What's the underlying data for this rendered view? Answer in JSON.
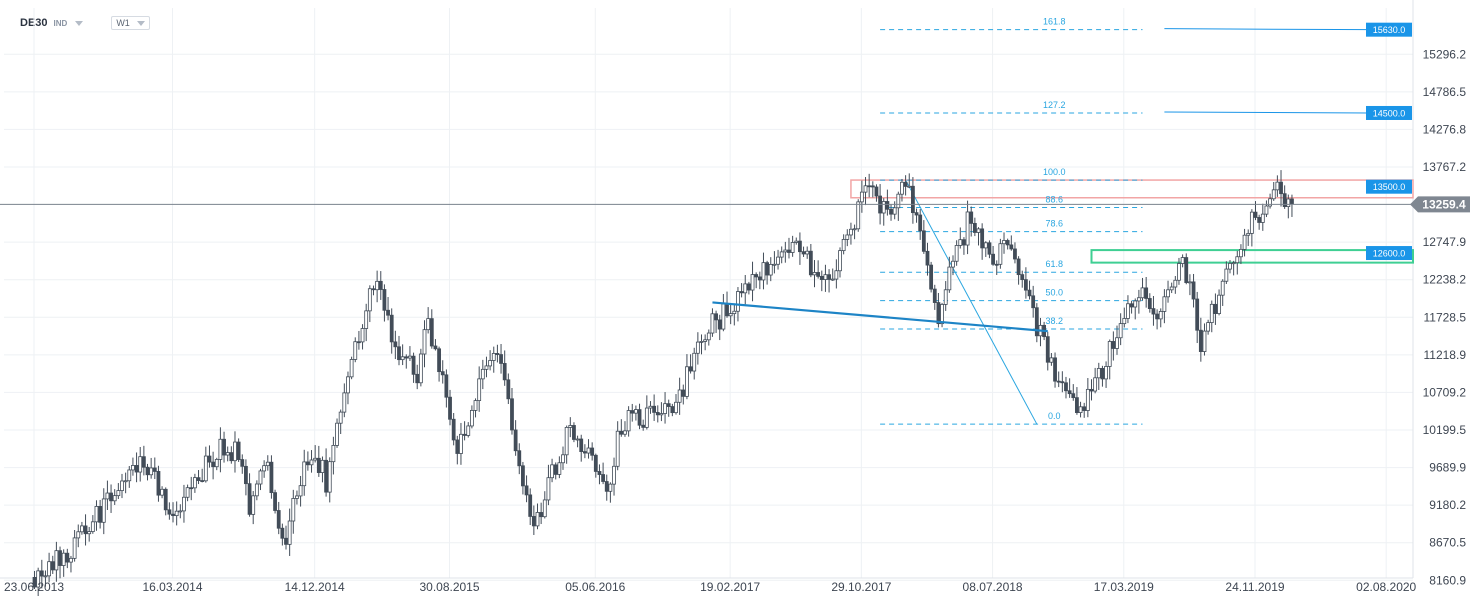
{
  "header": {
    "symbol": "DE30",
    "type_badge": "IND",
    "timeframe": "W1"
  },
  "colors": {
    "candle": "#424c58",
    "fib": "#2aa6e0",
    "trendline": "#1d84c6",
    "level_box": "#1a95e8",
    "resistance_zone": "#f2a5a5",
    "support_zone": "#3fcf93",
    "current_box": "#7f8791"
  },
  "chart_data": {
    "type": "candlestick",
    "symbol": "DE30",
    "timeframe": "W1",
    "y_ticks": [
      "15296.2",
      "14786.5",
      "14276.8",
      "13767.2",
      "12747.9",
      "12238.2",
      "11728.5",
      "11218.9",
      "10709.2",
      "10199.5",
      "9689.9",
      "9180.2",
      "8670.5",
      "8160.9"
    ],
    "x_ticks": [
      "23.06.2013",
      "16.03.2014",
      "14.12.2014",
      "30.08.2015",
      "05.06.2016",
      "19.02.2017",
      "29.10.2017",
      "08.07.2018",
      "17.03.2019",
      "24.11.2019",
      "02.08.2020"
    ],
    "ylim": [
      8120,
      15720
    ],
    "current_price": "13259.4",
    "price_levels": [
      "15630.0",
      "14500.0",
      "13500.0",
      "12600.0"
    ],
    "fibonacci": {
      "labels": [
        "161.8",
        "127.2",
        "100.0",
        "88.6",
        "78.6",
        "61.8",
        "50.0",
        "38.2",
        "0.0"
      ],
      "values": [
        15630,
        14500,
        13590,
        13218,
        12890,
        12340,
        11955,
        11570,
        10280
      ]
    },
    "resistance_zone": [
      13350,
      13590
    ],
    "support_zone": [
      12470,
      12640
    ],
    "trendline": {
      "from": [
        "2017-01-16",
        11930
      ],
      "to": [
        "2018-10-22",
        11540
      ]
    },
    "fib_swing": {
      "from": [
        "2018-01-22",
        13590
      ],
      "to": [
        "2018-12-24",
        10280
      ]
    },
    "segments": [
      [
        "2013-06-24",
        8200
      ],
      [
        "2013-09-02",
        8600
      ],
      [
        "2013-12-30",
        9600
      ],
      [
        "2014-01-20",
        9750
      ],
      [
        "2014-03-17",
        9100
      ],
      [
        "2014-06-16",
        10000
      ],
      [
        "2014-07-21",
        9900
      ],
      [
        "2014-08-11",
        9100
      ],
      [
        "2014-09-15",
        9800
      ],
      [
        "2014-10-13",
        8600
      ],
      [
        "2014-11-24",
        9800
      ],
      [
        "2014-12-15",
        9900
      ],
      [
        "2015-01-05",
        9500
      ],
      [
        "2015-03-02",
        11300
      ],
      [
        "2015-04-13",
        12300
      ],
      [
        "2015-05-11",
        11400
      ],
      [
        "2015-06-29",
        10950
      ],
      [
        "2015-07-20",
        11700
      ],
      [
        "2015-09-14",
        9900
      ],
      [
        "2015-10-19",
        10700
      ],
      [
        "2015-11-30",
        11300
      ],
      [
        "2016-01-11",
        9800
      ],
      [
        "2016-02-08",
        8900
      ],
      [
        "2016-04-18",
        10300
      ],
      [
        "2016-06-27",
        9400
      ],
      [
        "2016-07-25",
        10300
      ],
      [
        "2016-11-07",
        10500
      ],
      [
        "2016-12-26",
        11500
      ],
      [
        "2017-03-13",
        12000
      ],
      [
        "2017-06-19",
        12800
      ],
      [
        "2017-08-28",
        12100
      ],
      [
        "2017-11-06",
        13500
      ],
      [
        "2017-12-18",
        13100
      ],
      [
        "2018-01-22",
        13550
      ],
      [
        "2018-03-26",
        11800
      ],
      [
        "2018-05-21",
        13000
      ],
      [
        "2018-07-09",
        12500
      ],
      [
        "2018-08-06",
        12700
      ],
      [
        "2018-10-22",
        11200
      ],
      [
        "2018-12-24",
        10400
      ],
      [
        "2019-04-15",
        12100
      ],
      [
        "2019-05-20",
        11650
      ],
      [
        "2019-07-08",
        12550
      ],
      [
        "2019-08-12",
        11350
      ],
      [
        "2019-10-14",
        12600
      ],
      [
        "2019-12-09",
        13250
      ],
      [
        "2020-01-13",
        13450
      ],
      [
        "2020-02-03",
        13260
      ]
    ]
  }
}
